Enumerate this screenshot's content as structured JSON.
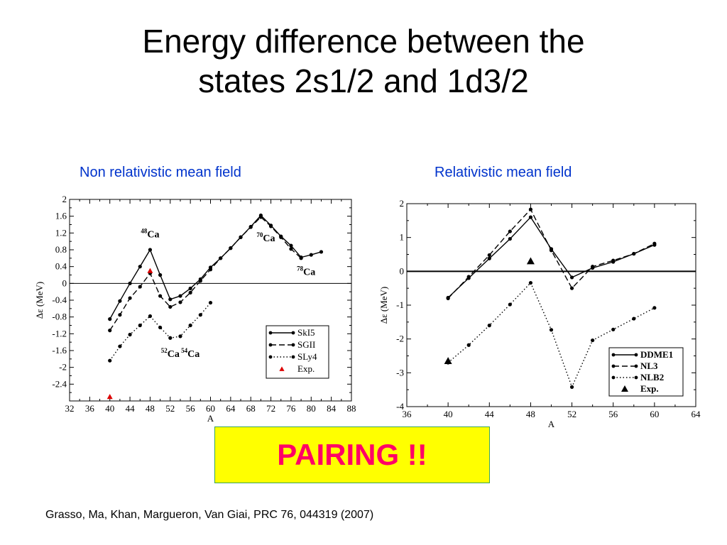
{
  "slide": {
    "title_line1": "Energy difference between the",
    "title_line2": "states 2s1/2 and 1d3/2",
    "left_heading": "Non relativistic mean field",
    "right_heading": "Relativistic mean field",
    "banner": "PAIRING !!",
    "citation": "Grasso, Ma, Khan, Margueron, Van Giai, PRC 76, 044319 (2007)"
  },
  "chart_data": [
    {
      "type": "line",
      "xlabel": "A",
      "ylabel": "Δε  (MeV)",
      "xlim": [
        32,
        88
      ],
      "ylim": [
        -2.8,
        2
      ],
      "xticks": [
        "32",
        "36",
        "40",
        "44",
        "48",
        "52",
        "56",
        "60",
        "64",
        "68",
        "72",
        "76",
        "80",
        "84",
        "88"
      ],
      "yticks": [
        "2",
        "1.6",
        "1.2",
        "0.8",
        "0.4",
        "0",
        "-0.4",
        "-0.8",
        "-1.2",
        "-1.6",
        "-2",
        "-2.4"
      ],
      "grid": false,
      "zero_line": true,
      "legend_position": "bottom-right",
      "series": [
        {
          "name": "SkI5",
          "style": "solid",
          "x": [
            40,
            42,
            44,
            46,
            48,
            50,
            52,
            54,
            56,
            58,
            60,
            62,
            64,
            66,
            68,
            70,
            72,
            74,
            76,
            78,
            80,
            82
          ],
          "y": [
            -0.85,
            -0.42,
            0.0,
            0.4,
            0.8,
            0.2,
            -0.38,
            -0.3,
            -0.12,
            0.1,
            0.38,
            0.6,
            0.84,
            1.1,
            1.35,
            1.62,
            1.38,
            1.12,
            0.9,
            0.62,
            0.68,
            0.75
          ]
        },
        {
          "name": "SGII",
          "style": "dashed",
          "x": [
            40,
            42,
            44,
            46,
            48,
            50,
            52,
            54,
            56,
            58,
            60,
            62,
            64,
            66,
            68,
            70,
            72,
            74,
            76,
            78
          ],
          "y": [
            -1.12,
            -0.75,
            -0.35,
            -0.08,
            0.24,
            -0.3,
            -0.56,
            -0.45,
            -0.22,
            0.06,
            0.33,
            0.6,
            0.84,
            1.1,
            1.34,
            1.58,
            1.36,
            1.1,
            0.82,
            0.6
          ]
        },
        {
          "name": "SLy4",
          "style": "dotted",
          "x": [
            40,
            42,
            44,
            46,
            48,
            50,
            52,
            54,
            56,
            58,
            60
          ],
          "y": [
            -1.84,
            -1.5,
            -1.22,
            -1.0,
            -0.78,
            -1.05,
            -1.3,
            -1.26,
            -1.0,
            -0.75,
            -0.46
          ]
        },
        {
          "name": "Exp.",
          "style": "marker-triangle",
          "color": "#dd0000",
          "x": [
            40,
            48
          ],
          "y": [
            -2.7,
            0.3
          ]
        }
      ],
      "annotations": [
        {
          "sup": "48",
          "text": "Ca",
          "x": 48,
          "y": 1.1
        },
        {
          "sup": "70",
          "text": "Ca",
          "x": 71,
          "y": 1.0
        },
        {
          "sup": "78",
          "text": "Ca",
          "x": 79,
          "y": 0.2
        },
        {
          "sup": "52",
          "text": "Ca",
          "x": 52,
          "y": -1.75
        },
        {
          "sup": "54",
          "text": "Ca",
          "x": 56,
          "y": -1.75
        }
      ]
    },
    {
      "type": "line",
      "xlabel": "A",
      "ylabel": "Δε  (MeV)",
      "xlim": [
        36,
        64
      ],
      "ylim": [
        -4,
        2
      ],
      "xticks": [
        "36",
        "40",
        "44",
        "48",
        "52",
        "56",
        "60",
        "64"
      ],
      "yticks": [
        "2",
        "1",
        "0",
        "-1",
        "-2",
        "-3",
        "-4"
      ],
      "grid": false,
      "zero_line": true,
      "legend_position": "bottom-right",
      "series": [
        {
          "name": "DDME1",
          "style": "solid",
          "x": [
            40,
            42,
            44,
            46,
            48,
            50,
            52,
            54,
            56,
            58,
            60
          ],
          "y": [
            -0.78,
            -0.2,
            0.38,
            0.96,
            1.6,
            0.66,
            -0.18,
            0.1,
            0.28,
            0.52,
            0.78
          ]
        },
        {
          "name": "NL3",
          "style": "dashed",
          "x": [
            40,
            42,
            44,
            46,
            48,
            50,
            52,
            54,
            56,
            58,
            60
          ],
          "y": [
            -0.8,
            -0.16,
            0.48,
            1.18,
            1.83,
            0.62,
            -0.5,
            0.14,
            0.32,
            0.52,
            0.82
          ]
        },
        {
          "name": "NLB2",
          "style": "dotted",
          "x": [
            40,
            42,
            44,
            46,
            48,
            50,
            52,
            54,
            56,
            58,
            60
          ],
          "y": [
            -2.7,
            -2.18,
            -1.6,
            -0.98,
            -0.34,
            -1.73,
            -3.42,
            -2.04,
            -1.72,
            -1.4,
            -1.08
          ]
        },
        {
          "name": "Exp.",
          "style": "marker-triangle",
          "color": "#000000",
          "x": [
            40,
            48
          ],
          "y": [
            -2.65,
            0.3
          ]
        }
      ],
      "annotations": []
    }
  ]
}
